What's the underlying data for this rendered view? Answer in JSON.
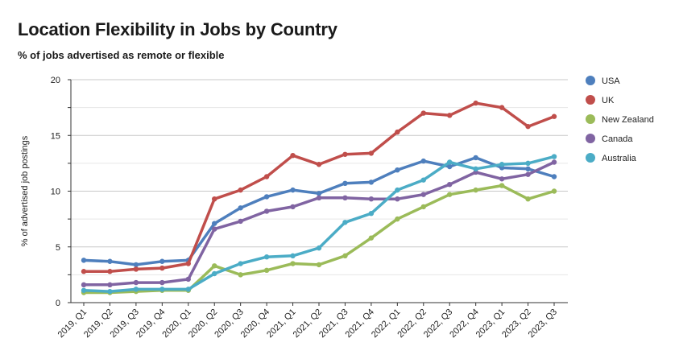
{
  "chart_data": {
    "type": "line",
    "title": "Location Flexibility in Jobs by Country",
    "subtitle": "% of jobs advertised as remote or flexible",
    "ylabel": "% of advertised job postings",
    "xlabel": "",
    "ylim": [
      0,
      20
    ],
    "yticks": [
      0,
      5,
      10,
      15,
      20
    ],
    "grid": true,
    "legend": "right",
    "categories": [
      "2019, Q1",
      "2019, Q2",
      "2019, Q3",
      "2019, Q4",
      "2020, Q1",
      "2020, Q2",
      "2020, Q3",
      "2020, Q4",
      "2021, Q1",
      "2021, Q2",
      "2021, Q3",
      "2021, Q4",
      "2022, Q1",
      "2022, Q2",
      "2022, Q3",
      "2022, Q4",
      "2023, Q1",
      "2023, Q2",
      "2023, Q3"
    ],
    "series": [
      {
        "name": "USA",
        "color": "#4e7fbd",
        "values": [
          3.8,
          3.7,
          3.4,
          3.7,
          3.8,
          7.1,
          8.5,
          9.5,
          10.1,
          9.8,
          10.7,
          10.8,
          11.9,
          12.7,
          12.2,
          13.0,
          12.1,
          12.0,
          11.3
        ]
      },
      {
        "name": "UK",
        "color": "#c04e4b",
        "values": [
          2.8,
          2.8,
          3.0,
          3.1,
          3.5,
          9.3,
          10.1,
          11.3,
          13.2,
          12.4,
          13.3,
          13.4,
          15.3,
          17.0,
          16.8,
          17.9,
          17.5,
          15.8,
          16.7
        ]
      },
      {
        "name": "New Zealand",
        "color": "#9bbb59",
        "values": [
          0.9,
          0.9,
          1.0,
          1.1,
          1.1,
          3.3,
          2.5,
          2.9,
          3.5,
          3.4,
          4.2,
          5.8,
          7.5,
          8.6,
          9.7,
          10.1,
          10.5,
          9.3,
          10.0
        ]
      },
      {
        "name": "Canada",
        "color": "#8064a2",
        "values": [
          1.6,
          1.6,
          1.8,
          1.8,
          2.1,
          6.6,
          7.3,
          8.2,
          8.6,
          9.4,
          9.4,
          9.3,
          9.3,
          9.7,
          10.6,
          11.7,
          11.1,
          11.5,
          12.6
        ]
      },
      {
        "name": "Australia",
        "color": "#4bacc6",
        "values": [
          1.1,
          1.0,
          1.2,
          1.2,
          1.2,
          2.6,
          3.5,
          4.1,
          4.2,
          4.9,
          7.2,
          8.0,
          10.1,
          11.0,
          12.6,
          12.0,
          12.4,
          12.5,
          13.1
        ]
      }
    ]
  }
}
